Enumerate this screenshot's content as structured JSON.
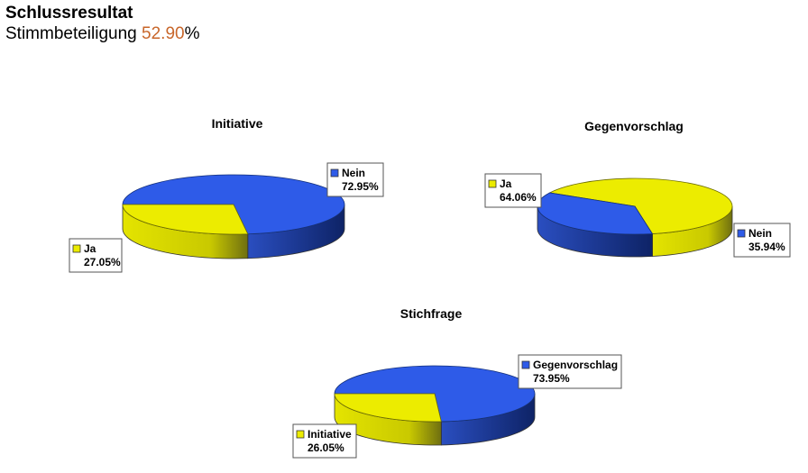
{
  "header": {
    "title": "Schlussresultat",
    "turnout_label": "Stimmbeteiligung",
    "turnout_value": "52.90",
    "turnout_unit": "%"
  },
  "colors": {
    "blue": "#2e5be8",
    "yellow": "#ecec00",
    "turnout": "#c8662a"
  },
  "chart_data": [
    {
      "type": "pie",
      "title": "Initiative",
      "slices": [
        {
          "label": "Nein",
          "value": 72.95,
          "display": "72.95%",
          "color": "#2e5be8"
        },
        {
          "label": "Ja",
          "value": 27.05,
          "display": "27.05%",
          "color": "#ecec00"
        }
      ],
      "legend": "callouts"
    },
    {
      "type": "pie",
      "title": "Gegenvorschlag",
      "slices": [
        {
          "label": "Ja",
          "value": 64.06,
          "display": "64.06%",
          "color": "#ecec00"
        },
        {
          "label": "Nein",
          "value": 35.94,
          "display": "35.94%",
          "color": "#2e5be8"
        }
      ],
      "legend": "callouts"
    },
    {
      "type": "pie",
      "title": "Stichfrage",
      "slices": [
        {
          "label": "Gegenvorschlag",
          "value": 73.95,
          "display": "73.95%",
          "color": "#2e5be8"
        },
        {
          "label": "Initiative",
          "value": 26.05,
          "display": "26.05%",
          "color": "#ecec00"
        }
      ],
      "legend": "callouts"
    }
  ]
}
